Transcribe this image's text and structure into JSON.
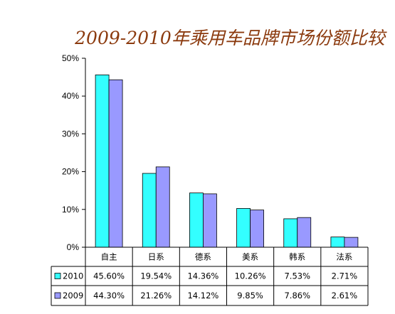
{
  "chart_data": {
    "type": "bar",
    "title": "2009-2010年乘用车品牌市场份额比较",
    "categories": [
      "自主",
      "日系",
      "德系",
      "美系",
      "韩系",
      "法系"
    ],
    "series": [
      {
        "name": "2010",
        "color": "#33ffff",
        "values": [
          45.6,
          19.54,
          14.36,
          10.26,
          7.53,
          2.71
        ],
        "labels": [
          "45.60%",
          "19.54%",
          "14.36%",
          "10.26%",
          "7.53%",
          "2.71%"
        ]
      },
      {
        "name": "2009",
        "color": "#9999ff",
        "values": [
          44.3,
          21.26,
          14.12,
          9.85,
          7.86,
          2.61
        ],
        "labels": [
          "44.30%",
          "21.26%",
          "14.12%",
          "9.85%",
          "7.86%",
          "2.61%"
        ]
      }
    ],
    "ylim": [
      0,
      50
    ],
    "yticks": [
      0,
      10,
      20,
      30,
      40,
      50
    ],
    "ytick_labels": [
      "0%",
      "10%",
      "20%",
      "30%",
      "40%",
      "50%"
    ],
    "grid": false,
    "legend": "data-table"
  }
}
